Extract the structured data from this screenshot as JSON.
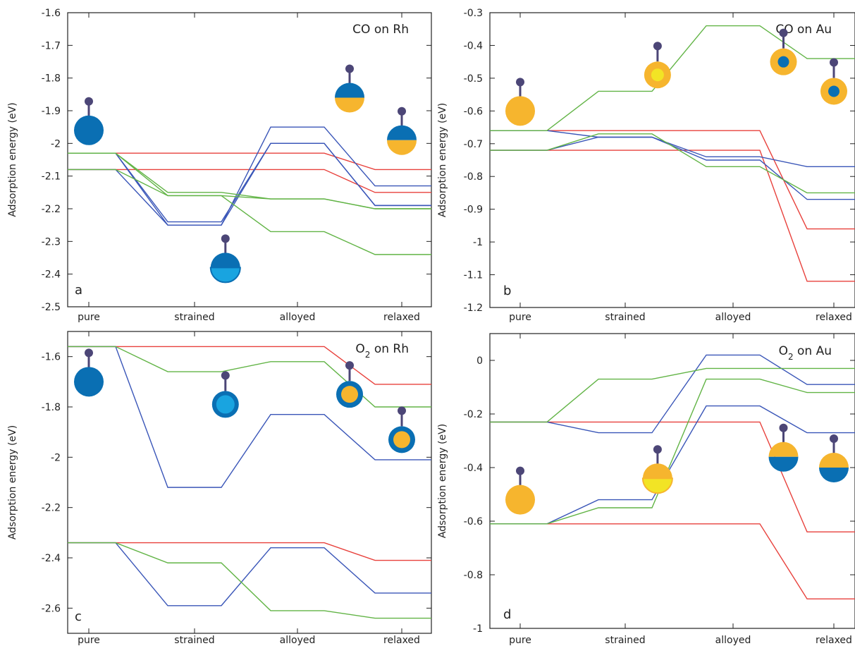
{
  "figure": {
    "ylabel": "Adsorption energy (eV)"
  },
  "colors": {
    "pure_series": "#e8413c",
    "strained_series": "#3a56b8",
    "alloyed_series": "#62b446",
    "rh_dark": "#0a6fb3",
    "rh_light": "#19a4e0",
    "au": "#f6b52e",
    "au_light": "#f2e425",
    "adsorbate": "#4c4677"
  },
  "chart_data": [
    {
      "type": "line",
      "panel": "a",
      "title": "CO on Rh",
      "ylabel": "Adsorption energy (eV)",
      "categories": [
        "pure",
        "strained",
        "alloyed",
        "relaxed"
      ],
      "ylim": [
        -2.5,
        -1.6
      ],
      "yticks": [
        -2.5,
        -2.4,
        -2.3,
        -2.2,
        -2.1,
        -2,
        -1.9,
        -1.8,
        -1.7,
        -1.6
      ],
      "grid": false,
      "series": [
        {
          "color": "pure",
          "values": [
            -2.03,
            -2.03,
            -2.03,
            -2.08
          ]
        },
        {
          "color": "pure",
          "values": [
            -2.08,
            -2.08,
            -2.08,
            -2.15
          ]
        },
        {
          "color": "strained",
          "values": [
            -2.03,
            -2.25,
            -1.95,
            -2.13
          ]
        },
        {
          "color": "strained",
          "values": [
            -2.03,
            -2.24,
            -2.0,
            -2.19
          ]
        },
        {
          "color": "strained",
          "values": [
            -2.08,
            -2.25,
            -2.0,
            -2.19
          ]
        },
        {
          "color": "alloyed",
          "values": [
            -2.03,
            -2.15,
            -2.17,
            -2.2
          ]
        },
        {
          "color": "alloyed",
          "values": [
            -2.03,
            -2.16,
            -2.17,
            -2.2
          ]
        },
        {
          "color": "alloyed",
          "values": [
            -2.08,
            -2.16,
            -2.27,
            -2.34
          ]
        }
      ],
      "glyphs": [
        {
          "x": 0,
          "y": -1.96,
          "style": "rh-full"
        },
        {
          "x": 1.3,
          "y": -2.38,
          "style": "rh-half-light"
        },
        {
          "x": 2.5,
          "y": -1.86,
          "style": "rh-half-au"
        },
        {
          "x": 3.5,
          "y": -1.99,
          "style": "rh-half-au"
        }
      ]
    },
    {
      "type": "line",
      "panel": "b",
      "title": "CO on Au",
      "ylabel": "Adsorption energy (eV)",
      "categories": [
        "pure",
        "strained",
        "alloyed",
        "relaxed"
      ],
      "ylim": [
        -1.2,
        -0.3
      ],
      "yticks": [
        -1.2,
        -1.1,
        -1,
        -0.9,
        -0.8,
        -0.7,
        -0.6,
        -0.5,
        -0.4,
        -0.3
      ],
      "grid": false,
      "series": [
        {
          "color": "pure",
          "values": [
            -0.66,
            -0.66,
            -0.66,
            -0.96
          ]
        },
        {
          "color": "pure",
          "values": [
            -0.72,
            -0.72,
            -0.72,
            -1.12
          ]
        },
        {
          "color": "strained",
          "values": [
            -0.66,
            -0.68,
            -0.74,
            -0.77
          ]
        },
        {
          "color": "strained",
          "values": [
            -0.72,
            -0.68,
            -0.75,
            -0.87
          ]
        },
        {
          "color": "alloyed",
          "values": [
            -0.66,
            -0.54,
            -0.34,
            -0.44
          ]
        },
        {
          "color": "alloyed",
          "values": [
            -0.72,
            -0.67,
            -0.77,
            -0.85
          ]
        }
      ],
      "glyphs": [
        {
          "x": 0,
          "y": -0.6,
          "style": "au-full"
        },
        {
          "x": 1.3,
          "y": -0.49,
          "style": "au-core-light"
        },
        {
          "x": 2.5,
          "y": -0.45,
          "style": "au-core-rh"
        },
        {
          "x": 3.5,
          "y": -0.54,
          "style": "au-core-rh"
        }
      ]
    },
    {
      "type": "line",
      "panel": "c",
      "title": "O2 on Rh",
      "ylabel": "Adsorption energy (eV)",
      "categories": [
        "pure",
        "strained",
        "alloyed",
        "relaxed"
      ],
      "ylim": [
        -2.7,
        -1.5
      ],
      "yticks": [
        -2.6,
        -2.4,
        -2.2,
        -2,
        -1.8,
        -1.6
      ],
      "grid": false,
      "series": [
        {
          "color": "pure",
          "values": [
            -1.56,
            -1.56,
            -1.56,
            -1.71
          ]
        },
        {
          "color": "pure",
          "values": [
            -2.34,
            -2.34,
            -2.34,
            -2.41
          ]
        },
        {
          "color": "strained",
          "values": [
            -1.56,
            -2.12,
            -1.83,
            -2.01
          ]
        },
        {
          "color": "strained",
          "values": [
            -2.34,
            -2.59,
            -2.36,
            -2.54
          ]
        },
        {
          "color": "alloyed",
          "values": [
            -1.56,
            -1.66,
            -1.62,
            -1.8
          ]
        },
        {
          "color": "alloyed",
          "values": [
            -2.34,
            -2.42,
            -2.61,
            -2.64
          ]
        }
      ],
      "glyphs": [
        {
          "x": 0,
          "y": -1.7,
          "style": "rh-full"
        },
        {
          "x": 1.3,
          "y": -1.79,
          "style": "rh-core-light"
        },
        {
          "x": 2.5,
          "y": -1.75,
          "style": "rh-core-au"
        },
        {
          "x": 3.5,
          "y": -1.93,
          "style": "rh-core-au"
        }
      ]
    },
    {
      "type": "line",
      "panel": "d",
      "title": "O2 on Au",
      "ylabel": "Adsorption energy (eV)",
      "categories": [
        "pure",
        "strained",
        "alloyed",
        "relaxed"
      ],
      "ylim": [
        -1,
        0.1
      ],
      "yticks": [
        -1,
        -0.8,
        -0.6,
        -0.4,
        -0.2,
        0
      ],
      "grid": false,
      "series": [
        {
          "color": "pure",
          "values": [
            -0.23,
            -0.23,
            -0.23,
            -0.64
          ]
        },
        {
          "color": "pure",
          "values": [
            -0.61,
            -0.61,
            -0.61,
            -0.89
          ]
        },
        {
          "color": "strained",
          "values": [
            -0.23,
            -0.27,
            0.02,
            -0.09
          ]
        },
        {
          "color": "strained",
          "values": [
            -0.61,
            -0.52,
            -0.17,
            -0.27
          ]
        },
        {
          "color": "alloyed",
          "values": [
            -0.23,
            -0.07,
            -0.03,
            -0.03
          ]
        },
        {
          "color": "alloyed",
          "values": [
            -0.61,
            -0.55,
            -0.07,
            -0.12
          ]
        }
      ],
      "glyphs": [
        {
          "x": 0,
          "y": -0.52,
          "style": "au-full"
        },
        {
          "x": 1.3,
          "y": -0.44,
          "style": "au-half-light"
        },
        {
          "x": 2.5,
          "y": -0.36,
          "style": "au-half-rh"
        },
        {
          "x": 3.5,
          "y": -0.4,
          "style": "au-half-rh"
        }
      ]
    }
  ]
}
